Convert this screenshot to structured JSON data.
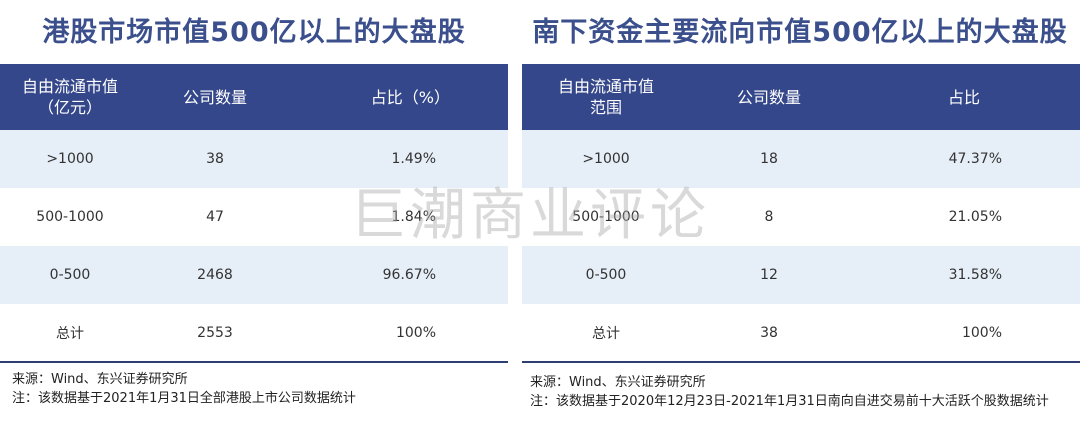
{
  "left": {
    "title": "港股市场市值500亿以上的大盘股",
    "headers": [
      "自由流通市值\n（亿元）",
      "公司数量",
      "占比（%）"
    ],
    "rows": [
      [
        ">1000",
        "38",
        "1.49%"
      ],
      [
        "500-1000",
        "47",
        "1.84%"
      ],
      [
        "0-500",
        "2468",
        "96.67%"
      ],
      [
        "总计",
        "2553",
        "100%"
      ]
    ],
    "source": "来源：Wind、东兴证券研究所",
    "note": "注：该数据基于2021年1月31日全部港股上市公司数据统计"
  },
  "right": {
    "title": "南下资金主要流向市值500亿以上的大盘股",
    "headers": [
      "自由流通市值\n范围",
      "公司数量",
      "占比"
    ],
    "rows": [
      [
        ">1000",
        "18",
        "47.37%"
      ],
      [
        "500-1000",
        "8",
        "21.05%"
      ],
      [
        "0-500",
        "12",
        "31.58%"
      ],
      [
        "总计",
        "38",
        "100%"
      ]
    ],
    "source": "来源：Wind、东兴证券研究所",
    "note": "注：该数据基于2020年12月23日-2021年1月31日南向自进交易前十大活跃个股数据统计"
  },
  "watermark": "巨潮商业评论"
}
